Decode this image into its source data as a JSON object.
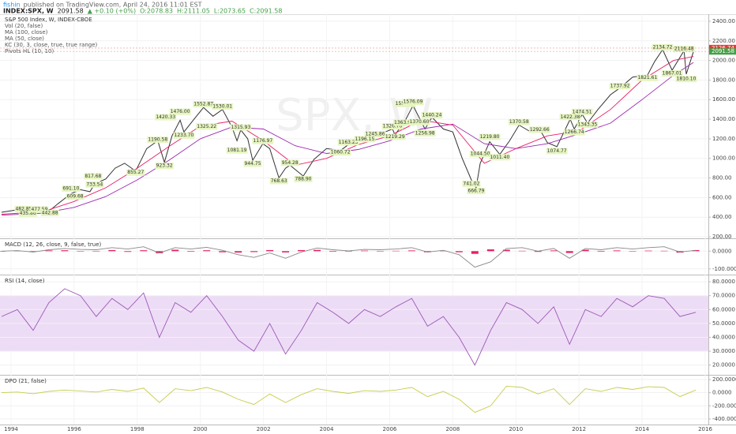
{
  "header": {
    "user": "fishin",
    "published": "published on TradingView.com, April 24, 2016 11:01 EST",
    "symbol": "INDEX:SPX, W",
    "last": "2091.58",
    "change": "▲ +0.10 (+0%)",
    "open": "O:2078.83",
    "high": "H:2111.05",
    "low": "L:2073.65",
    "close": "C:2091.58"
  },
  "chart_data": [
    {
      "type": "line",
      "title": "S&P 500 Index, W, INDEX-CBOE",
      "legend": [
        "Vol (20, false)",
        "MA (100, close)",
        "MA (50, close)",
        "KC (30, 3, close, true, true range)",
        "Pivots HL (10, 10)"
      ],
      "watermark": "SPX, W",
      "xlim": [
        1993.65,
        2016.1
      ],
      "xticks": [
        1994,
        1996,
        1998,
        2000,
        2002,
        2004,
        2006,
        2008,
        2010,
        2012,
        2014,
        2016
      ],
      "ylim": [
        184,
        2472
      ],
      "yticks": [
        {
          "value": 200,
          "label": "200.00"
        },
        {
          "value": 400,
          "label": "400.00"
        },
        {
          "value": 600,
          "label": "600.00"
        },
        {
          "value": 800,
          "label": "800.00"
        },
        {
          "value": 1000,
          "label": "1000.00"
        },
        {
          "value": 1200,
          "label": "1200.00"
        },
        {
          "value": 1400,
          "label": "1400.00"
        },
        {
          "value": 1600,
          "label": "1600.00"
        },
        {
          "value": 1800,
          "label": "1800.00"
        },
        {
          "value": 2000,
          "label": "2000.00"
        },
        {
          "value": 2200,
          "label": "2200.00"
        },
        {
          "value": 2400,
          "label": "2400.00"
        }
      ],
      "series": [
        {
          "color": "#333333",
          "x": [
            1993.7,
            1994.1,
            1994.4,
            1994.7,
            1994.9,
            1995.2,
            1995.5,
            1995.9,
            1996.2,
            1996.5,
            1996.65,
            1997.0,
            1997.3,
            1997.6,
            1997.95,
            1998.3,
            1998.65,
            1998.86,
            1999.1,
            1999.36,
            1999.48,
            1999.8,
            2000.1,
            2000.4,
            2000.7,
            2001.0,
            2001.16,
            2001.28,
            2001.5,
            2001.66,
            2001.98,
            2002.2,
            2002.49,
            2002.7,
            2002.84,
            2003.26,
            2003.6,
            2004.0,
            2004.44,
            2004.69,
            2005.0,
            2005.21,
            2005.54,
            2006.09,
            2006.17,
            2006.5,
            2006.74,
            2007.12,
            2007.34,
            2007.7,
            2008.0,
            2008.3,
            2008.59,
            2008.74,
            2008.87,
            2009.17,
            2009.49,
            2009.8,
            2010.1,
            2010.42,
            2010.75,
            2011.0,
            2011.3,
            2011.72,
            2011.85,
            2012.1,
            2012.27,
            2012.6,
            2013.0,
            2013.3,
            2013.7,
            2014.17,
            2014.4,
            2014.65,
            2014.95,
            2015.33,
            2015.4,
            2015.63
          ],
          "values": [
            450,
            470,
            480,
            440,
            470,
            460,
            540,
            640,
            680,
            660,
            740,
            790,
            900,
            950,
            870,
            1100,
            1180,
            960,
            1230,
            1390,
            1270,
            1400,
            1520,
            1430,
            1500,
            1320,
            1180,
            1290,
            1200,
            980,
            1150,
            1100,
            800,
            900,
            930,
            820,
            990,
            1100,
            1080,
            1140,
            1200,
            1180,
            1230,
            1300,
            1240,
            1390,
            1540,
            1300,
            1420,
            1300,
            1270,
            1000,
            780,
            700,
            950,
            1170,
            1040,
            1180,
            1340,
            1280,
            1300,
            1160,
            1120,
            1400,
            1300,
            1450,
            1360,
            1500,
            1650,
            1720,
            1830,
            1850,
            1990,
            2110,
            1900,
            2100,
            1860,
            2091.58
          ]
        },
        {
          "color": "#9c27b0",
          "x": [
            1993.7,
            1995,
            1996,
            1997,
            1998,
            1999,
            2000,
            2001,
            2002,
            2003,
            2004,
            2005,
            2006,
            2007,
            2008,
            2009,
            2010,
            2011,
            2012,
            2013,
            2014,
            2015,
            2015.63
          ],
          "values": [
            420,
            440,
            500,
            610,
            780,
            980,
            1200,
            1320,
            1300,
            1130,
            1050,
            1090,
            1180,
            1300,
            1350,
            1150,
            1100,
            1150,
            1250,
            1360,
            1600,
            1850,
            1980
          ]
        },
        {
          "color": "#e91e63",
          "x": [
            1993.7,
            1995,
            1996,
            1997,
            1998,
            1999,
            2000,
            2001,
            2002,
            2003,
            2004,
            2005,
            2006,
            2007,
            2008,
            2009,
            2010,
            2011,
            2012,
            2013,
            2014,
            2015,
            2015.63
          ],
          "values": [
            430,
            455,
            560,
            700,
            900,
            1120,
            1330,
            1380,
            1180,
            930,
            1000,
            1140,
            1230,
            1390,
            1340,
            950,
            1100,
            1230,
            1280,
            1500,
            1800,
            2000,
            2040
          ]
        }
      ],
      "pivot_color": "#e6f5c0",
      "pivots": [
        {
          "x": 1994.4,
          "value": 482.85
        },
        {
          "x": 1994.53,
          "value": 435.86
        },
        {
          "x": 1994.9,
          "value": 477.59
        },
        {
          "x": 1995.23,
          "value": 442.88
        },
        {
          "x": 1995.9,
          "value": 691.1,
          "label": "691.10"
        },
        {
          "x": 1996.03,
          "value": 609.68
        },
        {
          "x": 1996.65,
          "value": 733.54
        },
        {
          "x": 1996.6,
          "value": 817.68
        },
        {
          "x": 1997.95,
          "value": 855.27
        },
        {
          "x": 1998.65,
          "value": 1190.58
        },
        {
          "x": 1998.86,
          "value": 923.32
        },
        {
          "x": 1998.9,
          "value": 1420.33
        },
        {
          "x": 1999.36,
          "value": 1476,
          "label": "1476.00"
        },
        {
          "x": 1999.48,
          "value": 1233.7,
          "label": "1233.70"
        },
        {
          "x": 2000.1,
          "value": 1552.87
        },
        {
          "x": 2000.7,
          "value": 1530.01
        },
        {
          "x": 2000.2,
          "value": 1325.22
        },
        {
          "x": 2001.28,
          "value": 1315.93
        },
        {
          "x": 2001.16,
          "value": 1081.19
        },
        {
          "x": 2001.98,
          "value": 1176.97
        },
        {
          "x": 2001.66,
          "value": 944.75
        },
        {
          "x": 2002.84,
          "value": 954.28
        },
        {
          "x": 2002.49,
          "value": 768.63
        },
        {
          "x": 2003.26,
          "value": 788.9,
          "label": "788.90"
        },
        {
          "x": 2004.69,
          "value": 1163.23
        },
        {
          "x": 2004.44,
          "value": 1060.72
        },
        {
          "x": 2005.54,
          "value": 1245.86
        },
        {
          "x": 2006.09,
          "value": 1326.7,
          "label": "1326.70"
        },
        {
          "x": 2005.21,
          "value": 1196.15
        },
        {
          "x": 2006.17,
          "value": 1219.29
        },
        {
          "x": 2006.49,
          "value": 1555.9,
          "label": "1555.90"
        },
        {
          "x": 2006.74,
          "value": 1576.09
        },
        {
          "x": 2006.45,
          "value": 1363.98
        },
        {
          "x": 2006.94,
          "value": 1370.6,
          "label": "1370.60"
        },
        {
          "x": 2007.34,
          "value": 1440.24
        },
        {
          "x": 2007.12,
          "value": 1256.98
        },
        {
          "x": 2008.59,
          "value": 741.02
        },
        {
          "x": 2008.74,
          "value": 666.79
        },
        {
          "x": 2009.17,
          "value": 1219.8,
          "label": "1219.80"
        },
        {
          "x": 2008.87,
          "value": 1044.5,
          "label": "1044.50"
        },
        {
          "x": 2009.49,
          "value": 1011.4,
          "label": "1011.40"
        },
        {
          "x": 2010.1,
          "value": 1370.58
        },
        {
          "x": 2010.75,
          "value": 1292.66
        },
        {
          "x": 2011.72,
          "value": 1422.38
        },
        {
          "x": 2011.85,
          "value": 1266.74
        },
        {
          "x": 2011.3,
          "value": 1074.77
        },
        {
          "x": 2012.1,
          "value": 1474.51
        },
        {
          "x": 2012.27,
          "value": 1343.35
        },
        {
          "x": 2013.3,
          "value": 1737.92
        },
        {
          "x": 2014.17,
          "value": 1821.61
        },
        {
          "x": 2014.65,
          "value": 2134.72
        },
        {
          "x": 2015.33,
          "value": 2116.48
        },
        {
          "x": 2014.95,
          "value": 1867.01
        },
        {
          "x": 2015.4,
          "value": 1810.1,
          "label": "1810.10"
        }
      ],
      "price_tags": [
        {
          "value": 2126.74,
          "color": "#e53935"
        },
        {
          "value": 2091.58,
          "color": "#43a047"
        }
      ]
    },
    {
      "type": "line",
      "title": "MACD (12, 26, close, 9, false, true)",
      "ylim": [
        -132,
        68
      ],
      "yticks": [
        {
          "value": 0,
          "label": "0.0000"
        },
        {
          "value": -100,
          "label": "-100.0000"
        }
      ],
      "x": [
        1993.7,
        1994.2,
        1994.7,
        1995.2,
        1995.7,
        1996.2,
        1996.7,
        1997.2,
        1997.7,
        1998.2,
        1998.7,
        1999.2,
        1999.7,
        2000.2,
        2000.7,
        2001.2,
        2001.7,
        2002.2,
        2002.7,
        2003.2,
        2003.7,
        2004.2,
        2004.7,
        2005.2,
        2005.7,
        2006.2,
        2006.7,
        2007.2,
        2007.7,
        2008.2,
        2008.7,
        2009.2,
        2009.7,
        2010.2,
        2010.7,
        2011.2,
        2011.7,
        2012.2,
        2012.7,
        2013.2,
        2013.7,
        2014.2,
        2014.7,
        2015.2,
        2015.7
      ],
      "series": [
        {
          "type": "bar",
          "color": "#e91e63",
          "values": [
            0,
            2,
            -3,
            4,
            5,
            -2,
            -1,
            6,
            -4,
            5,
            -12,
            8,
            -3,
            5,
            -6,
            -8,
            -5,
            6,
            -7,
            6,
            7,
            -3,
            -2,
            3,
            -1,
            2,
            4,
            -6,
            2,
            -6,
            -15,
            10,
            8,
            2,
            -4,
            4,
            -10,
            8,
            -3,
            4,
            -2,
            3,
            2,
            -8,
            6
          ]
        },
        {
          "type": "line",
          "color": "#888888",
          "values": [
            0,
            3,
            -5,
            8,
            15,
            10,
            8,
            20,
            12,
            25,
            -10,
            20,
            12,
            22,
            5,
            -20,
            -35,
            -10,
            -40,
            -5,
            18,
            8,
            2,
            10,
            8,
            12,
            20,
            -5,
            5,
            -20,
            -90,
            -60,
            15,
            20,
            0,
            15,
            -40,
            15,
            8,
            20,
            12,
            20,
            25,
            -5,
            5
          ]
        }
      ]
    },
    {
      "type": "line",
      "title": "RSI (14, close)",
      "ylim": [
        13,
        84.6
      ],
      "yticks": [
        {
          "value": 20,
          "label": "20.0000"
        },
        {
          "value": 30,
          "label": "30.0000"
        },
        {
          "value": 40,
          "label": "40.0000"
        },
        {
          "value": 50,
          "label": "50.0000"
        },
        {
          "value": 60,
          "label": "60.0000"
        },
        {
          "value": 70,
          "label": "70.0000"
        },
        {
          "value": 80,
          "label": "80.0000"
        }
      ],
      "band": [
        30,
        70
      ],
      "band_color": "#eddcf6",
      "x": [
        1993.7,
        1994.2,
        1994.7,
        1995.2,
        1995.7,
        1996.2,
        1996.7,
        1997.2,
        1997.7,
        1998.2,
        1998.7,
        1999.2,
        1999.7,
        2000.2,
        2000.7,
        2001.2,
        2001.7,
        2002.2,
        2002.7,
        2003.2,
        2003.7,
        2004.2,
        2004.7,
        2005.2,
        2005.7,
        2006.2,
        2006.7,
        2007.2,
        2007.7,
        2008.2,
        2008.7,
        2009.2,
        2009.7,
        2010.2,
        2010.7,
        2011.2,
        2011.7,
        2012.2,
        2012.7,
        2013.2,
        2013.7,
        2014.2,
        2014.7,
        2015.2,
        2015.7
      ],
      "series": [
        {
          "type": "line",
          "color": "#9c58b6",
          "values": [
            55,
            60,
            45,
            65,
            75,
            70,
            55,
            68,
            60,
            72,
            40,
            65,
            58,
            70,
            55,
            38,
            30,
            50,
            28,
            45,
            65,
            58,
            50,
            60,
            55,
            62,
            68,
            48,
            55,
            40,
            20,
            45,
            65,
            60,
            50,
            62,
            35,
            60,
            55,
            68,
            62,
            70,
            68,
            55,
            58
          ]
        }
      ]
    },
    {
      "type": "line",
      "title": "DPO (21, false)",
      "ylim": [
        -485,
        260
      ],
      "yticks": [
        {
          "value": 200,
          "label": "200.0000"
        },
        {
          "value": 0,
          "label": "0.0000"
        },
        {
          "value": -200,
          "label": "-200.0000"
        },
        {
          "value": -400,
          "label": "-400.0000"
        }
      ],
      "x": [
        1993.7,
        1994.2,
        1994.7,
        1995.2,
        1995.7,
        1996.2,
        1996.7,
        1997.2,
        1997.7,
        1998.2,
        1998.7,
        1999.2,
        1999.7,
        2000.2,
        2000.7,
        2001.2,
        2001.7,
        2002.2,
        2002.7,
        2003.2,
        2003.7,
        2004.2,
        2004.7,
        2005.2,
        2005.7,
        2006.2,
        2006.7,
        2007.2,
        2007.7,
        2008.2,
        2008.7,
        2009.2,
        2009.7,
        2010.2,
        2010.7,
        2011.2,
        2011.7,
        2012.2,
        2012.7,
        2013.2,
        2013.7,
        2014.2,
        2014.7,
        2015.2,
        2015.7
      ],
      "series": [
        {
          "type": "line",
          "color": "#c8cc4a",
          "values": [
            0,
            10,
            -15,
            20,
            40,
            25,
            10,
            50,
            20,
            70,
            -150,
            60,
            30,
            80,
            10,
            -100,
            -180,
            -20,
            -150,
            -30,
            60,
            20,
            -10,
            30,
            20,
            40,
            80,
            -60,
            20,
            -100,
            -300,
            -200,
            100,
            80,
            -20,
            60,
            -180,
            60,
            20,
            80,
            50,
            90,
            80,
            -60,
            40
          ]
        }
      ]
    }
  ]
}
